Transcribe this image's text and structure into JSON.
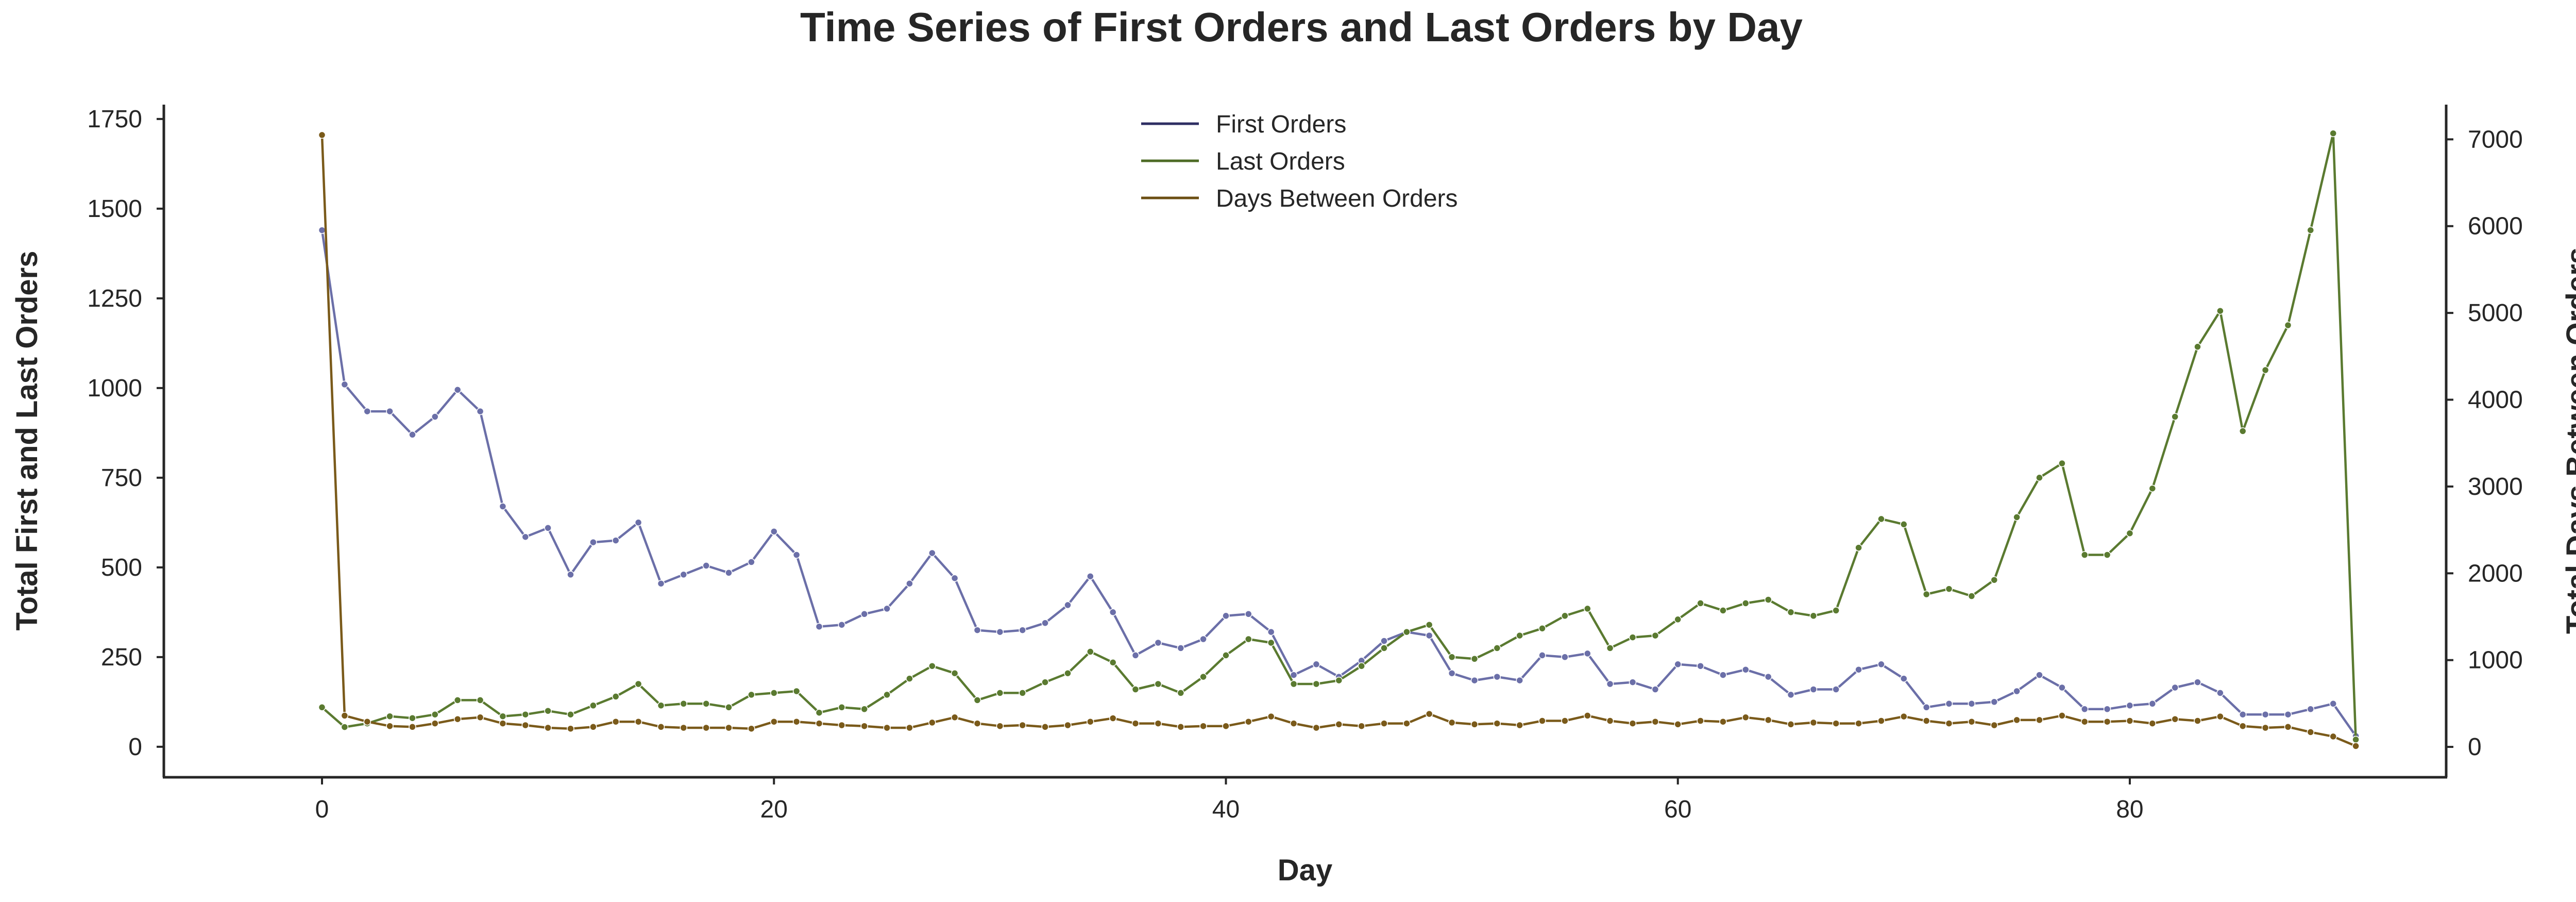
{
  "chart_data": {
    "type": "line",
    "title": "Time Series of First Orders and Last Orders by Day",
    "xlabel": "Day",
    "ylabel": "Total First and Last Orders",
    "ylabel_right": "Total Days Between Orders",
    "xlim": [
      -7,
      94
    ],
    "ylim": [
      -85,
      1790
    ],
    "ylim_right": [
      -350,
      7400
    ],
    "x_ticks": [
      0,
      20,
      40,
      60,
      80
    ],
    "y_ticks": [
      0,
      250,
      500,
      750,
      1000,
      1250,
      1500,
      1750
    ],
    "y_right_ticks": [
      0,
      1000,
      2000,
      3000,
      4000,
      5000,
      6000,
      7000
    ],
    "legend_position": "top-center",
    "series": [
      {
        "name": "First Orders",
        "axis": "left",
        "color": "#6b6fa8",
        "legend_color": "#2e2e63",
        "values": [
          1440,
          1010,
          935,
          935,
          870,
          920,
          995,
          935,
          670,
          585,
          610,
          480,
          570,
          575,
          625,
          455,
          480,
          505,
          485,
          515,
          600,
          535,
          335,
          340,
          370,
          385,
          455,
          540,
          470,
          325,
          320,
          325,
          345,
          395,
          475,
          375,
          255,
          290,
          275,
          300,
          365,
          370,
          320,
          200,
          230,
          195,
          240,
          295,
          320,
          310,
          205,
          185,
          195,
          185,
          255,
          250,
          260,
          175,
          180,
          160,
          230,
          225,
          200,
          215,
          195,
          145,
          160,
          160,
          215,
          230,
          190,
          110,
          120,
          120,
          125,
          155,
          200,
          165,
          105,
          105,
          115,
          120,
          165,
          180,
          150,
          90,
          90,
          90,
          105,
          120,
          30
        ]
      },
      {
        "name": "Last Orders",
        "axis": "left",
        "color": "#5a7a30",
        "legend_color": "#4d6b25",
        "values": [
          110,
          55,
          65,
          85,
          80,
          90,
          130,
          130,
          85,
          90,
          100,
          90,
          115,
          140,
          175,
          115,
          120,
          120,
          110,
          145,
          150,
          155,
          95,
          110,
          105,
          145,
          190,
          225,
          205,
          130,
          150,
          150,
          180,
          205,
          265,
          235,
          160,
          175,
          150,
          195,
          255,
          300,
          290,
          175,
          175,
          185,
          225,
          275,
          320,
          340,
          250,
          245,
          275,
          310,
          330,
          365,
          385,
          275,
          305,
          310,
          355,
          400,
          380,
          400,
          410,
          375,
          365,
          380,
          555,
          635,
          620,
          425,
          440,
          420,
          465,
          640,
          750,
          790,
          535,
          535,
          595,
          720,
          920,
          1115,
          1215,
          880,
          1050,
          1175,
          1440,
          1710,
          20
        ]
      },
      {
        "name": "Days Between Orders",
        "axis": "right",
        "color": "#7a5a1a",
        "legend_color": "#6b4e12",
        "values": [
          7050,
          360,
          290,
          240,
          230,
          270,
          320,
          340,
          270,
          250,
          220,
          210,
          230,
          290,
          290,
          230,
          220,
          220,
          220,
          210,
          290,
          290,
          270,
          250,
          240,
          220,
          220,
          280,
          340,
          270,
          240,
          250,
          230,
          250,
          290,
          330,
          270,
          270,
          230,
          240,
          240,
          290,
          350,
          270,
          220,
          260,
          240,
          270,
          270,
          380,
          280,
          260,
          270,
          250,
          300,
          300,
          360,
          300,
          270,
          290,
          260,
          300,
          290,
          340,
          310,
          260,
          280,
          270,
          270,
          300,
          350,
          300,
          270,
          290,
          250,
          310,
          310,
          360,
          290,
          290,
          300,
          270,
          320,
          300,
          350,
          240,
          220,
          230,
          170,
          120,
          10
        ]
      }
    ]
  }
}
